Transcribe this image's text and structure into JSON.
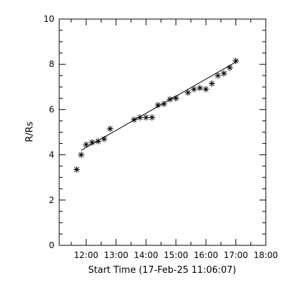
{
  "chart_data": {
    "type": "scatter",
    "xlabel": "Start Time (17-Feb-25 11:06:07)",
    "ylabel": "R/Rs",
    "x_tick_labels": [
      "12:00",
      "13:00",
      "14:00",
      "15:00",
      "16:00",
      "17:00",
      "18:00"
    ],
    "y_tick_labels": [
      "0",
      "2",
      "4",
      "6",
      "8",
      "10"
    ],
    "xlim": [
      "11:06",
      "18:00"
    ],
    "ylim": [
      0,
      10
    ],
    "marker": "asterisk",
    "fit_line": true,
    "series": [
      {
        "x": [
          "11:41",
          "11:50",
          "12:00",
          "12:12",
          "12:24",
          "12:36",
          "12:48",
          "13:36",
          "13:48",
          "14:00",
          "14:12",
          "14:24",
          "14:36",
          "14:48",
          "15:00",
          "15:24",
          "15:36",
          "15:48",
          "16:00",
          "16:12",
          "16:24",
          "16:36",
          "16:48",
          "17:00"
        ],
        "values": [
          3.35,
          4.0,
          4.45,
          4.55,
          4.6,
          4.7,
          5.15,
          5.55,
          5.65,
          5.65,
          5.65,
          6.2,
          6.25,
          6.45,
          6.5,
          6.75,
          6.9,
          6.95,
          6.9,
          7.15,
          7.5,
          7.6,
          7.85,
          8.15
        ]
      }
    ],
    "fit": {
      "x": [
        "11:50",
        "17:00"
      ],
      "values": [
        4.2,
        8.1
      ]
    }
  },
  "colors": {
    "foreground": "#000000",
    "background": "#ffffff"
  }
}
